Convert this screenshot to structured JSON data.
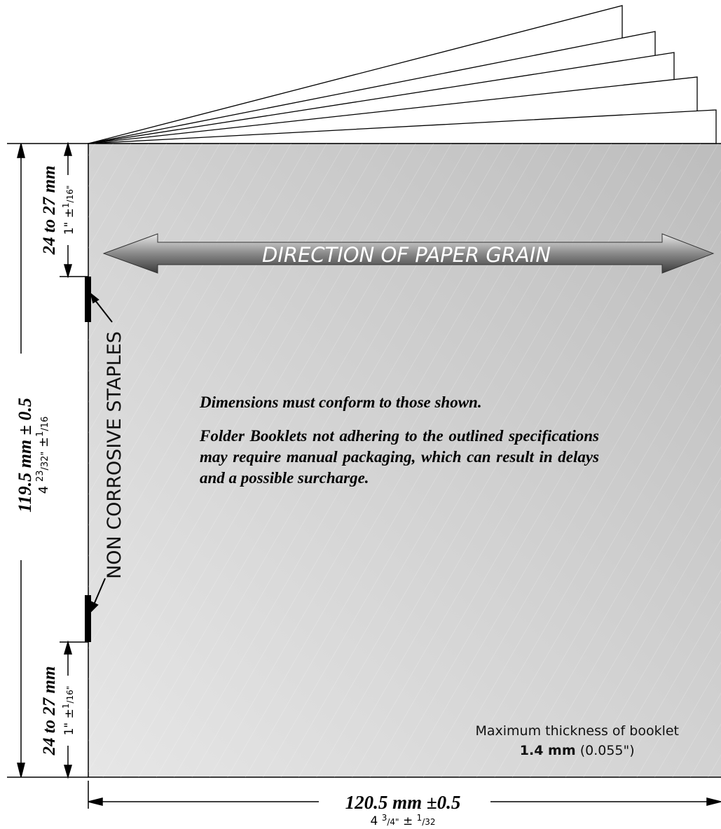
{
  "grain_arrow": "DIRECTION OF PAPER GRAIN",
  "staples_label": "NON CORROSIVE STAPLES",
  "notes": [
    "Dimensions must conform to those shown.",
    "Folder Booklets not adhering to the outlined specifications may require manual packaging, which can result in delays and a possible surcharge."
  ],
  "thickness": {
    "label": "Maximum thickness of booklet",
    "value": "1.4 mm",
    "value_in": "(0.055\")"
  },
  "width": {
    "metric": "120.5 mm ±0.5",
    "imperial": {
      "whole": "4",
      "num": "3",
      "den": "/4\"",
      "tol": "±",
      "tol_num": "1",
      "tol_den": "/32"
    }
  },
  "height": {
    "metric": "119.5 mm ± 0.5",
    "imperial": {
      "whole": "4",
      "num": "23",
      "den": "/32\"",
      "tol": "±",
      "tol_num": "1",
      "tol_den": "/16"
    }
  },
  "staple_top": {
    "metric": "24 to 27 mm",
    "imperial": {
      "whole": "1\"",
      "tol": "±",
      "tol_num": "1",
      "tol_den": "/16\""
    }
  },
  "staple_bottom": {
    "metric": "24 to 27 mm",
    "imperial": {
      "whole": "1\"",
      "tol": "±",
      "tol_num": "1",
      "tol_den": "/16\""
    }
  }
}
